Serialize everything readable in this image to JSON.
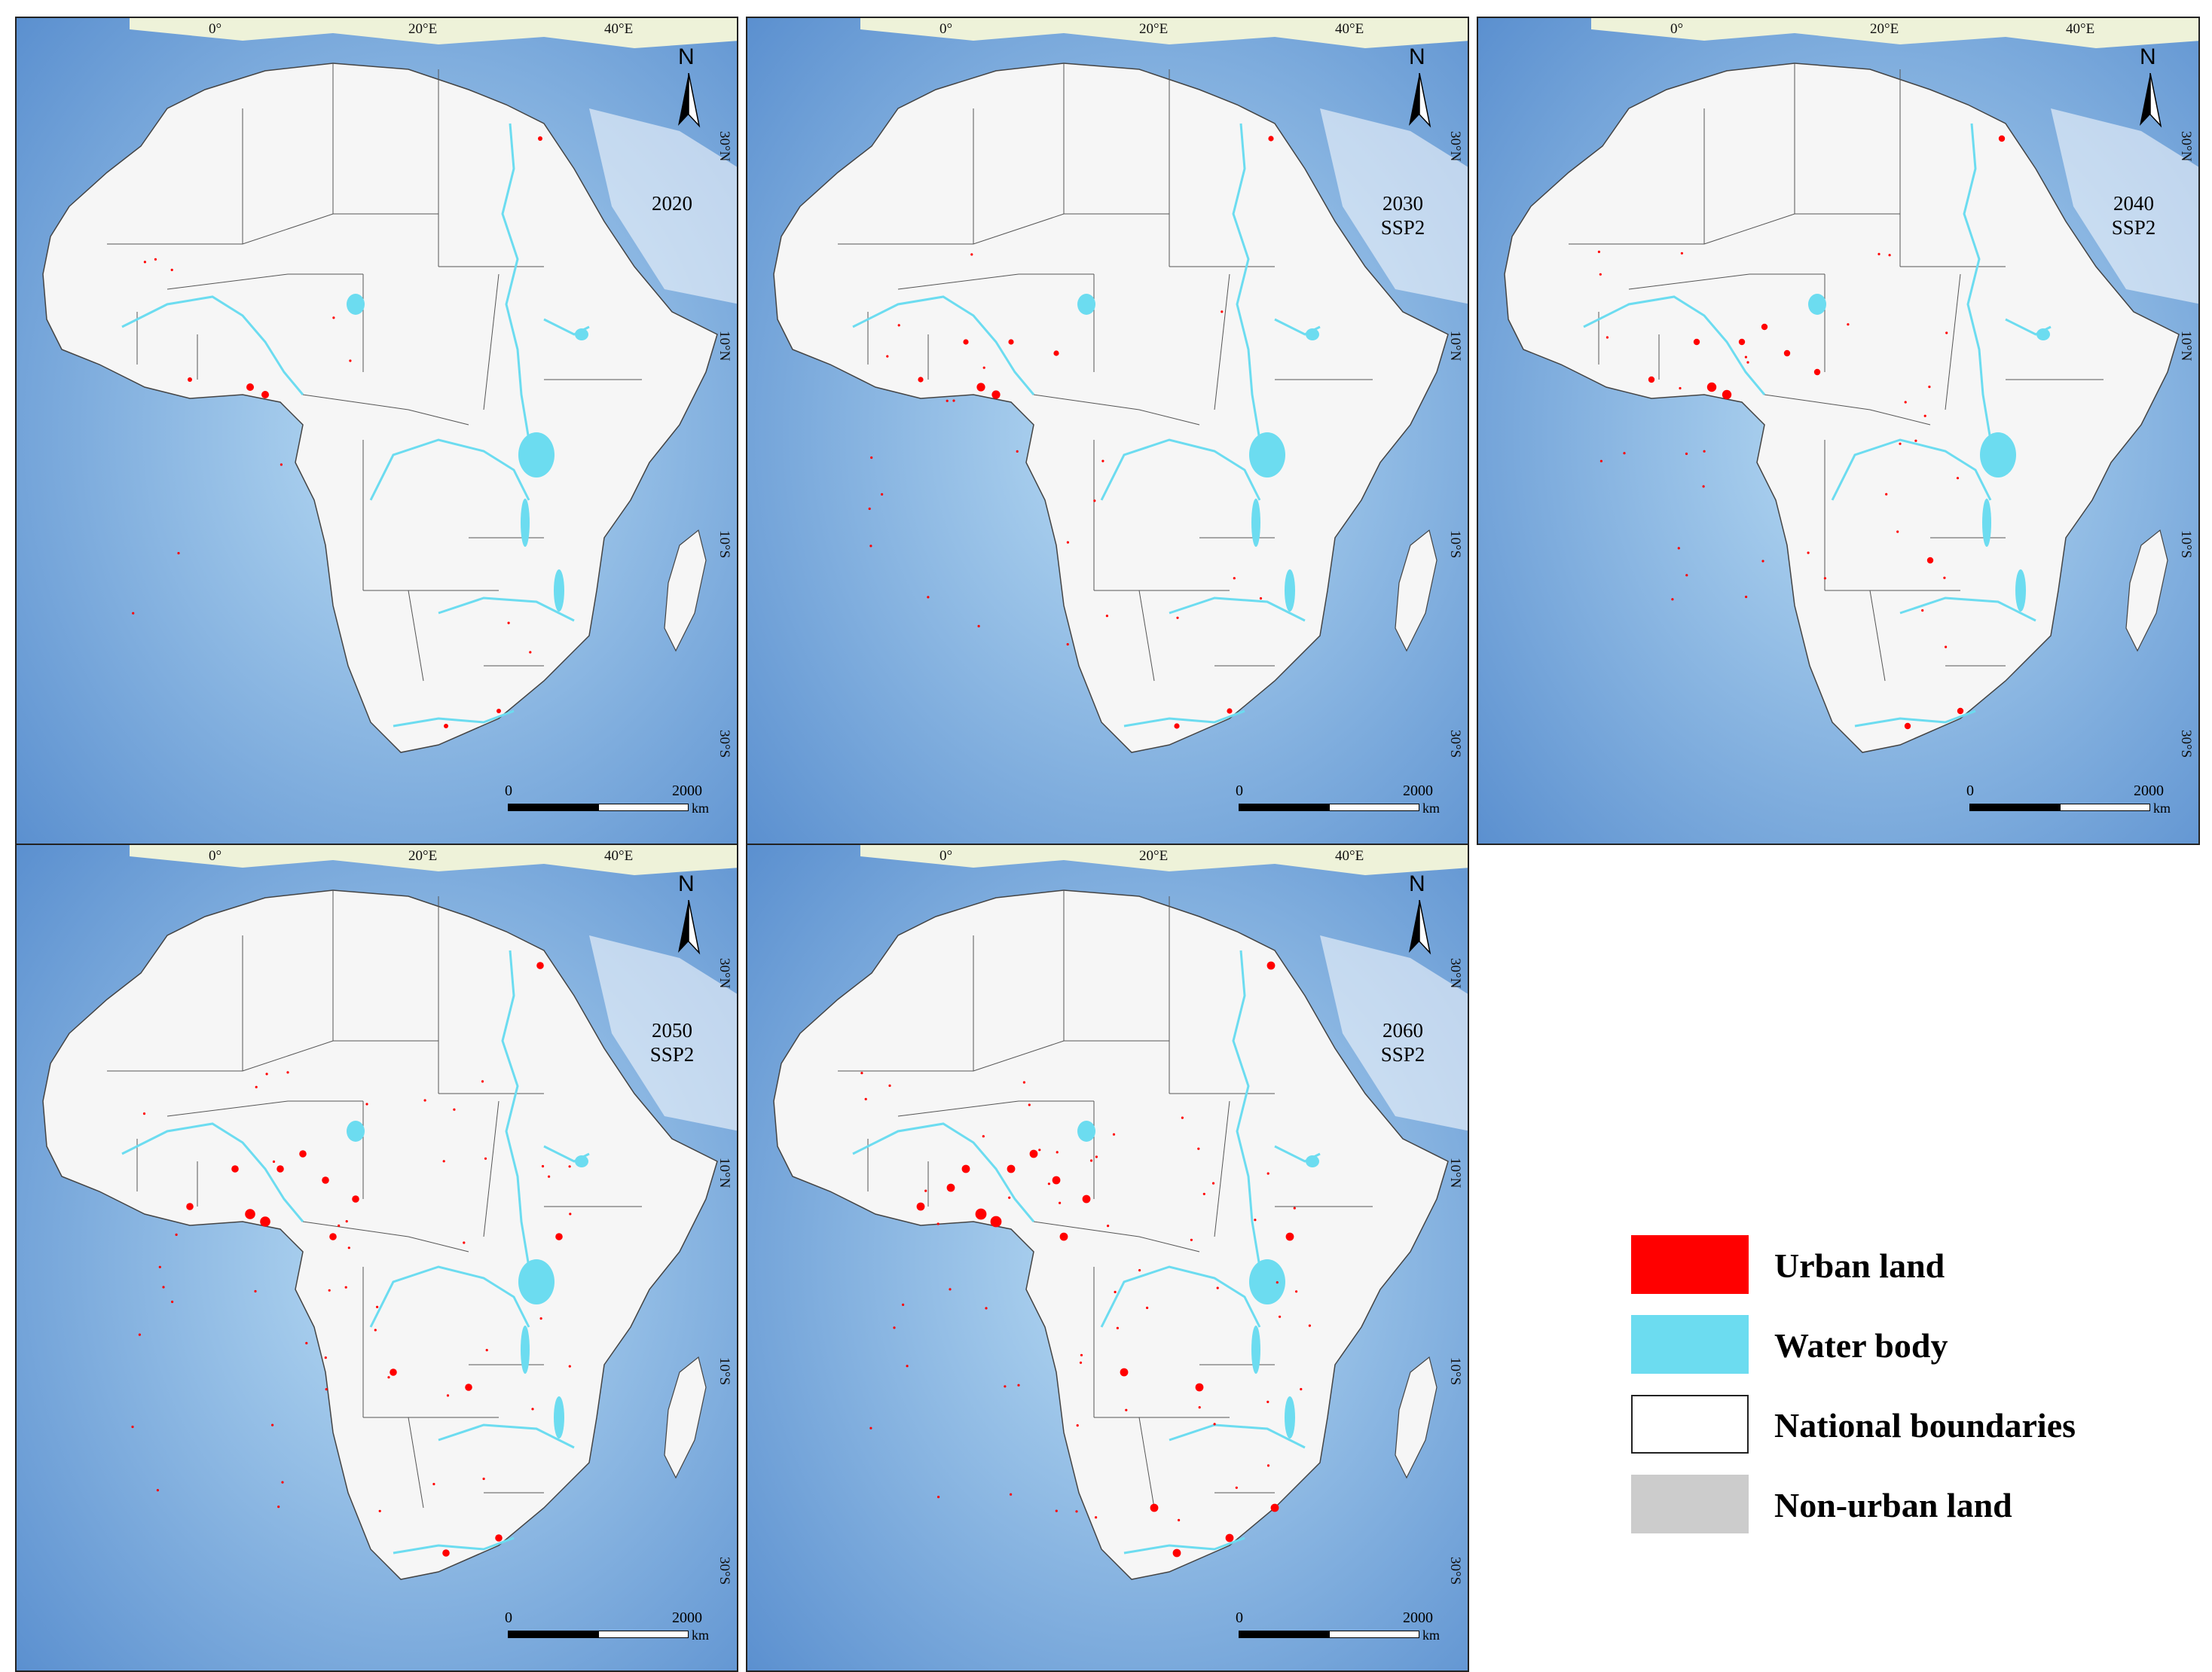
{
  "legend": {
    "items": [
      {
        "label": "Urban land",
        "color": "#ff0000",
        "border": "none"
      },
      {
        "label": "Water body",
        "color": "#6cdcf0",
        "border": "none"
      },
      {
        "label": "National boundaries",
        "color": "#ffffff",
        "border": "#222222"
      },
      {
        "label": "Non-urban land",
        "color": "#cccccc",
        "border": "none"
      }
    ]
  },
  "axes": {
    "lon": [
      "0°",
      "20°E",
      "40°E"
    ],
    "lat": [
      "30°N",
      "10°N",
      "10°S",
      "30°S"
    ]
  },
  "scale": {
    "start": "0",
    "end": "2000",
    "unit": "km"
  },
  "north": "N",
  "panels": [
    {
      "year": "2020",
      "scenario": ""
    },
    {
      "year": "2030",
      "scenario": "SSP2"
    },
    {
      "year": "2040",
      "scenario": "SSP2"
    },
    {
      "year": "2050",
      "scenario": "SSP2"
    },
    {
      "year": "2060",
      "scenario": "SSP2"
    }
  ],
  "colors": {
    "ocean_deep": "#5a8fcf",
    "ocean_shallow": "#b9dcf4",
    "land": "#f6f6f6",
    "boundary": "#555555",
    "water": "#6cdcf0",
    "urban": "#ff0000"
  }
}
